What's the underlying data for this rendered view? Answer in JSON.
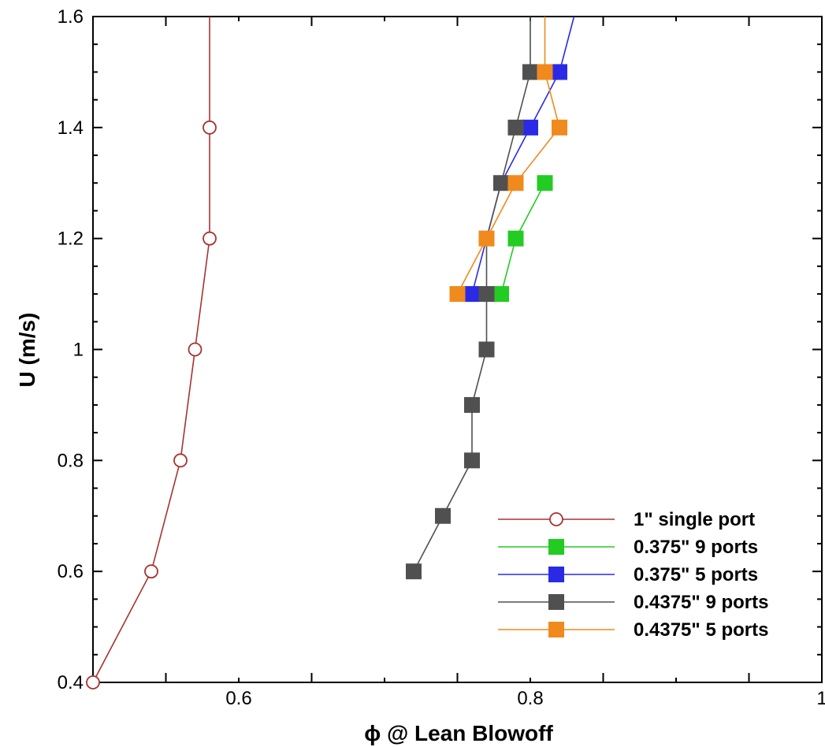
{
  "chart_data": {
    "type": "line",
    "title": "",
    "xlabel": "ϕ @ Lean Blowoff",
    "ylabel": "U (m/s)",
    "xlim": [
      0.5,
      1.0
    ],
    "ylim": [
      0.4,
      1.6
    ],
    "x_ticks": [
      0.6,
      0.8,
      1.0
    ],
    "x_tick_labels": [
      "0.6",
      "0.8",
      "1"
    ],
    "y_ticks": [
      0.4,
      0.6,
      0.8,
      1.0,
      1.2,
      1.4,
      1.6
    ],
    "y_tick_labels": [
      "0.4",
      "0.6",
      "0.8",
      "1",
      "1.2",
      "1.4",
      "1.6"
    ],
    "grid": false,
    "legend_position": "bottom-right",
    "series": [
      {
        "name": "1\" single port",
        "color": "#a83232",
        "marker": "open-circle",
        "line_points": [
          [
            0.5,
            0.4
          ],
          [
            0.54,
            0.6
          ],
          [
            0.56,
            0.8
          ],
          [
            0.57,
            1.0
          ],
          [
            0.58,
            1.2
          ],
          [
            0.58,
            1.4
          ],
          [
            0.58,
            1.6
          ]
        ],
        "marker_points": [
          [
            0.5,
            0.4
          ],
          [
            0.54,
            0.6
          ],
          [
            0.56,
            0.8
          ],
          [
            0.57,
            1.0
          ],
          [
            0.58,
            1.2
          ],
          [
            0.58,
            1.4
          ]
        ]
      },
      {
        "name": "0.375\" 9 ports",
        "color": "#22cc22",
        "marker": "filled-square",
        "line_points": [
          [
            0.78,
            1.1
          ],
          [
            0.79,
            1.2
          ],
          [
            0.81,
            1.3
          ]
        ],
        "marker_points": [
          [
            0.78,
            1.1
          ],
          [
            0.79,
            1.2
          ],
          [
            0.81,
            1.3
          ]
        ]
      },
      {
        "name": "0.375\" 5 ports",
        "color": "#2a2ae6",
        "marker": "filled-square",
        "line_points": [
          [
            0.76,
            1.1
          ],
          [
            0.77,
            1.2
          ],
          [
            0.78,
            1.3
          ],
          [
            0.8,
            1.4
          ],
          [
            0.82,
            1.5
          ],
          [
            0.83,
            1.6
          ]
        ],
        "marker_points": [
          [
            0.76,
            1.1
          ],
          [
            0.8,
            1.4
          ],
          [
            0.82,
            1.5
          ]
        ]
      },
      {
        "name": "0.4375\" 9 ports",
        "color": "#505050",
        "marker": "filled-square",
        "line_points": [
          [
            0.72,
            0.6
          ],
          [
            0.74,
            0.7
          ],
          [
            0.76,
            0.8
          ],
          [
            0.76,
            0.9
          ],
          [
            0.77,
            1.0
          ],
          [
            0.77,
            1.1
          ],
          [
            0.77,
            1.2
          ],
          [
            0.78,
            1.3
          ],
          [
            0.79,
            1.4
          ],
          [
            0.8,
            1.5
          ],
          [
            0.8,
            1.6
          ]
        ],
        "marker_points": [
          [
            0.72,
            0.6
          ],
          [
            0.74,
            0.7
          ],
          [
            0.76,
            0.8
          ],
          [
            0.76,
            0.9
          ],
          [
            0.77,
            1.0
          ],
          [
            0.77,
            1.1
          ],
          [
            0.78,
            1.3
          ],
          [
            0.79,
            1.4
          ],
          [
            0.8,
            1.5
          ]
        ]
      },
      {
        "name": "0.4375\" 5 ports",
        "color": "#f08a1c",
        "marker": "filled-square",
        "line_points": [
          [
            0.75,
            1.1
          ],
          [
            0.77,
            1.2
          ],
          [
            0.79,
            1.3
          ],
          [
            0.82,
            1.4
          ],
          [
            0.81,
            1.5
          ],
          [
            0.81,
            1.6
          ]
        ],
        "marker_points": [
          [
            0.75,
            1.1
          ],
          [
            0.77,
            1.2
          ],
          [
            0.79,
            1.3
          ],
          [
            0.82,
            1.4
          ],
          [
            0.81,
            1.5
          ]
        ]
      }
    ]
  }
}
